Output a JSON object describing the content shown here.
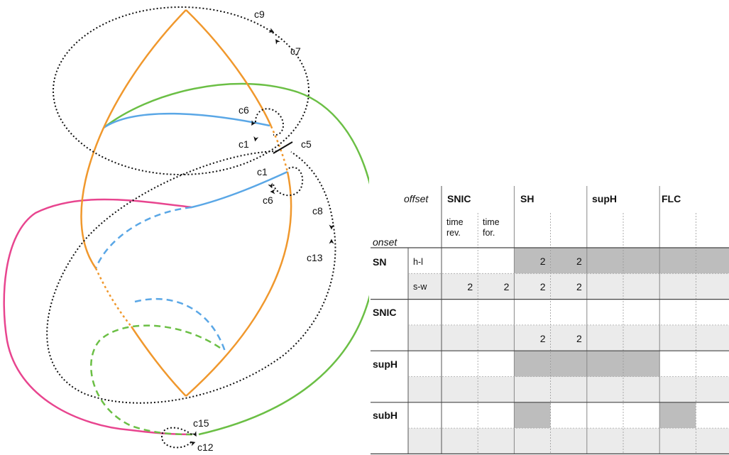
{
  "diagram": {
    "orbit_labels": [
      "c9",
      "c7",
      "c6",
      "c1",
      "c5",
      "c1",
      "c6",
      "c8",
      "c13",
      "c15",
      "c12"
    ]
  },
  "table": {
    "offset_label": "offset",
    "onset_label": "onset",
    "column_groups": [
      "SNIC",
      "SH",
      "supH",
      "FLC"
    ],
    "snic_subheaders": [
      "time\nrev.",
      "time\nfor."
    ],
    "row_groups": [
      "SN",
      "SNIC",
      "supH",
      "subH"
    ],
    "sn_sublabels": [
      "h-l",
      "s-w"
    ],
    "cells": [
      [
        "",
        "",
        "2",
        "2",
        "",
        "",
        "",
        ""
      ],
      [
        "2",
        "2",
        "2",
        "2",
        "",
        "",
        "",
        ""
      ],
      [
        "",
        "",
        "",
        "",
        "",
        "",
        "",
        ""
      ],
      [
        "",
        "",
        "2",
        "2",
        "",
        "",
        "",
        ""
      ],
      [
        "",
        "",
        "",
        "",
        "",
        "",
        "",
        ""
      ],
      [
        "",
        "",
        "",
        "",
        "",
        "",
        "",
        ""
      ],
      [
        "",
        "",
        "",
        "",
        "",
        "",
        "",
        ""
      ],
      [
        "",
        "",
        "",
        "",
        "",
        "",
        "",
        ""
      ]
    ],
    "fills": [
      [
        "w",
        "w",
        "d",
        "d",
        "d",
        "d",
        "d",
        "d"
      ],
      [
        "l",
        "l",
        "l",
        "l",
        "l",
        "l",
        "l",
        "l"
      ],
      [
        "w",
        "w",
        "w",
        "w",
        "w",
        "w",
        "w",
        "w"
      ],
      [
        "l",
        "l",
        "l",
        "l",
        "l",
        "l",
        "l",
        "l"
      ],
      [
        "w",
        "w",
        "d",
        "d",
        "d",
        "d",
        "w",
        "w"
      ],
      [
        "l",
        "l",
        "l",
        "l",
        "l",
        "l",
        "l",
        "l"
      ],
      [
        "w",
        "w",
        "d",
        "w",
        "w",
        "w",
        "d",
        "w"
      ],
      [
        "l",
        "l",
        "l",
        "l",
        "l",
        "l",
        "l",
        "l"
      ]
    ],
    "colors": {
      "white": "#ffffff",
      "light": "#ebebeb",
      "dark": "#bdbdbd"
    }
  },
  "colors": {
    "orange": "#f0982d",
    "green": "#6bbf45",
    "blue": "#5aa7e6",
    "pink": "#e8458f",
    "black": "#111111"
  }
}
